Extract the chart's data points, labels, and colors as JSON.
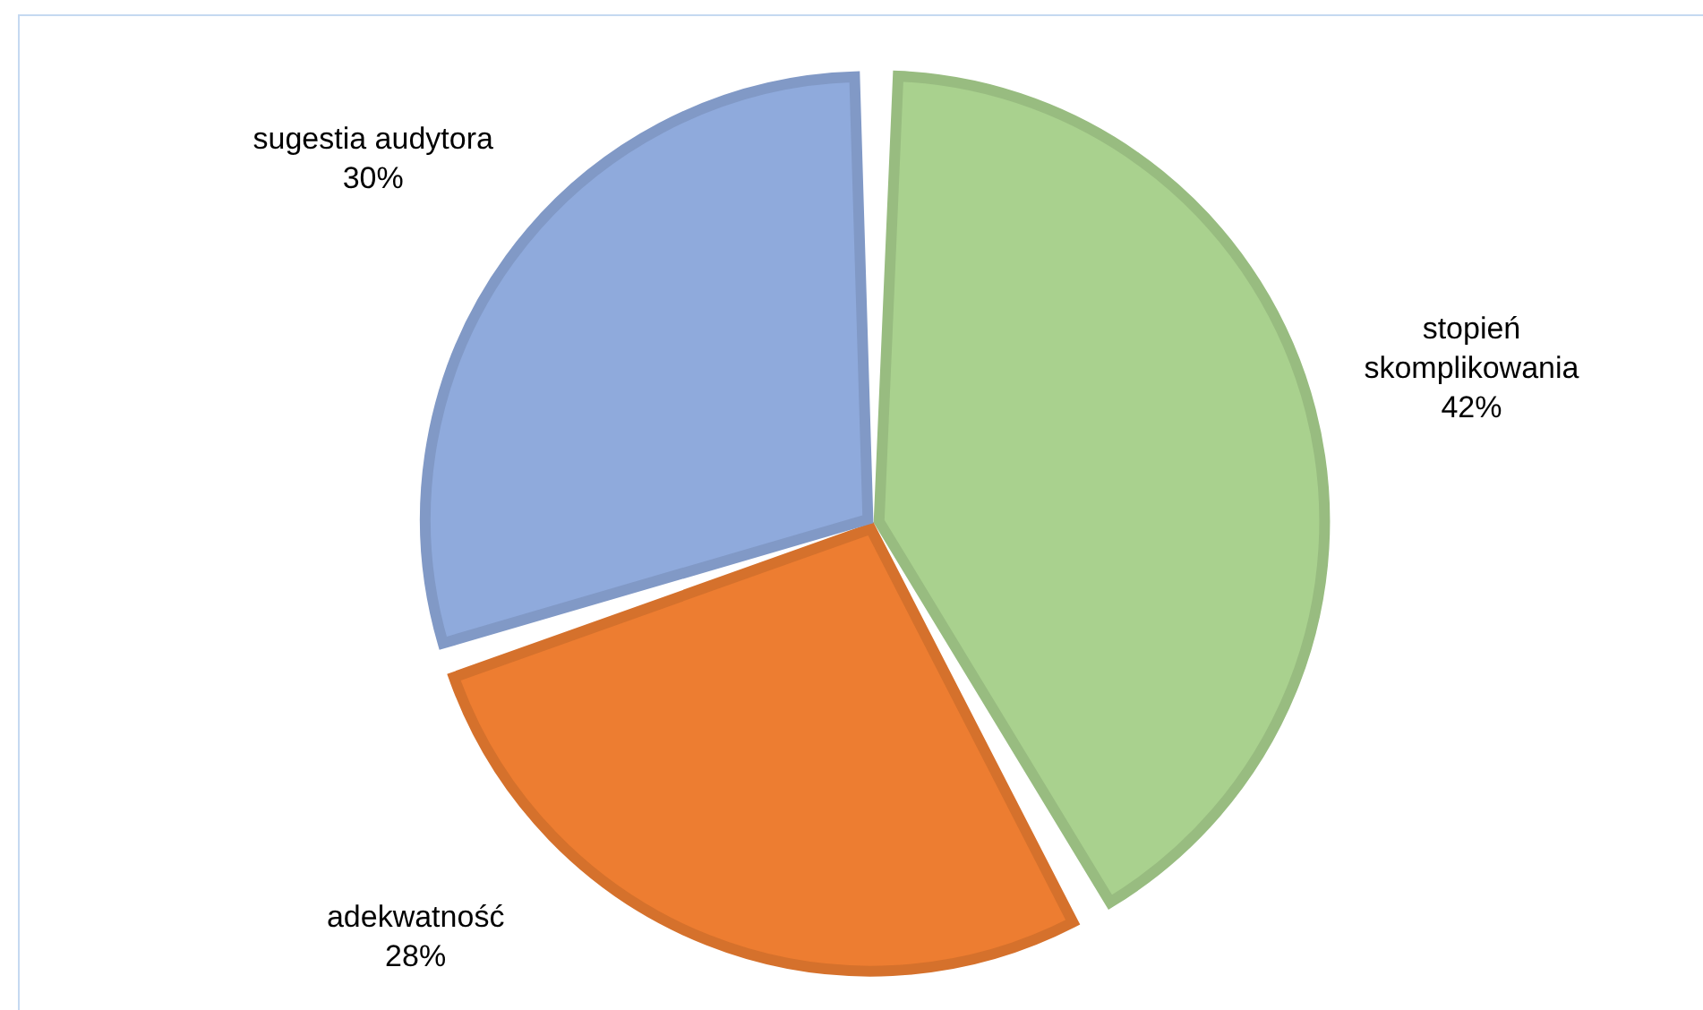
{
  "chart_data": {
    "type": "pie",
    "categories": [
      "stopień skomplikowania",
      "adekwatność",
      "sugestia audytora"
    ],
    "values": [
      42,
      28,
      30
    ],
    "colors": [
      "#a9d18e",
      "#ed7d31",
      "#8faadc"
    ],
    "value_labels": [
      "42%",
      "28%",
      "30%"
    ],
    "legend": false
  }
}
